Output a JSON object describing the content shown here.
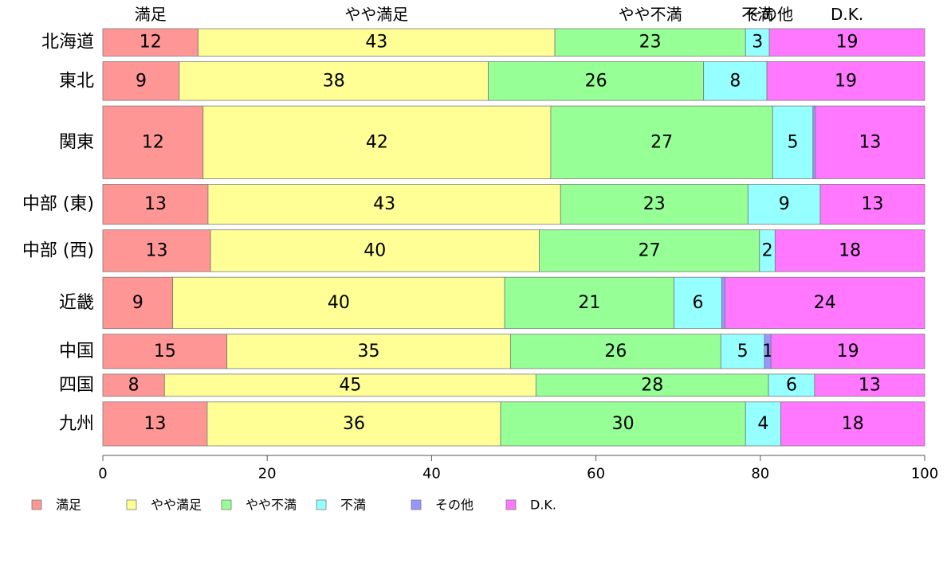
{
  "chart_data": {
    "type": "bar",
    "orientation": "horizontal",
    "stacked": true,
    "title": "",
    "xlabel": "",
    "ylabel": "",
    "xlim": [
      0,
      100
    ],
    "x_ticks": [
      "0",
      "20",
      "40",
      "60",
      "80",
      "100"
    ],
    "grid": false,
    "legend_position": "bottom",
    "top_labels": [
      "満足",
      "やや満足",
      "やや不満",
      "不満",
      "その他",
      "D.K."
    ],
    "categories": [
      "北海道",
      "東北",
      "関東",
      "中部 (東)",
      "中部 (西)",
      "近畿",
      "中国",
      "四国",
      "九州"
    ],
    "category_weights": [
      0.63,
      0.89,
      1.67,
      0.92,
      0.96,
      1.18,
      0.79,
      0.51,
      1.01
    ],
    "series": [
      {
        "name": "満足",
        "color": "#ff9696",
        "values": [
          11.6,
          9.3,
          12.2,
          12.8,
          13.1,
          8.5,
          15.1,
          7.5,
          12.7
        ]
      },
      {
        "name": "やや満足",
        "color": "#ffff96",
        "values": [
          43.4,
          37.6,
          42.3,
          42.9,
          40.0,
          40.4,
          34.5,
          45.2,
          35.7
        ]
      },
      {
        "name": "やや不満",
        "color": "#96ff96",
        "values": [
          23.2,
          26.2,
          27.0,
          22.8,
          26.8,
          20.6,
          25.6,
          28.3,
          29.8
        ]
      },
      {
        "name": "不満",
        "color": "#96ffff",
        "values": [
          2.9,
          7.7,
          4.9,
          8.8,
          1.9,
          5.8,
          5.3,
          5.6,
          4.3
        ]
      },
      {
        "name": "その他",
        "color": "#9696ff",
        "values": [
          0.0,
          0.0,
          0.3,
          0.0,
          0.0,
          0.4,
          0.8,
          0.0,
          0.0
        ]
      },
      {
        "name": "D.K.",
        "color": "#ff78ff",
        "values": [
          18.9,
          19.2,
          13.3,
          12.7,
          18.2,
          24.3,
          18.7,
          13.4,
          17.5
        ]
      }
    ],
    "value_labels": [
      [
        "12",
        "43",
        "23",
        "3",
        "",
        "19"
      ],
      [
        "9",
        "38",
        "26",
        "8",
        "",
        "19"
      ],
      [
        "12",
        "42",
        "27",
        "5",
        "",
        "13"
      ],
      [
        "13",
        "43",
        "23",
        "9",
        "",
        "13"
      ],
      [
        "13",
        "40",
        "27",
        "2",
        "",
        "18"
      ],
      [
        "9",
        "40",
        "21",
        "6",
        "",
        "24"
      ],
      [
        "15",
        "35",
        "26",
        "5",
        "1",
        "19"
      ],
      [
        "8",
        "45",
        "28",
        "6",
        "",
        "13"
      ],
      [
        "13",
        "36",
        "30",
        "4",
        "",
        "18"
      ]
    ]
  }
}
